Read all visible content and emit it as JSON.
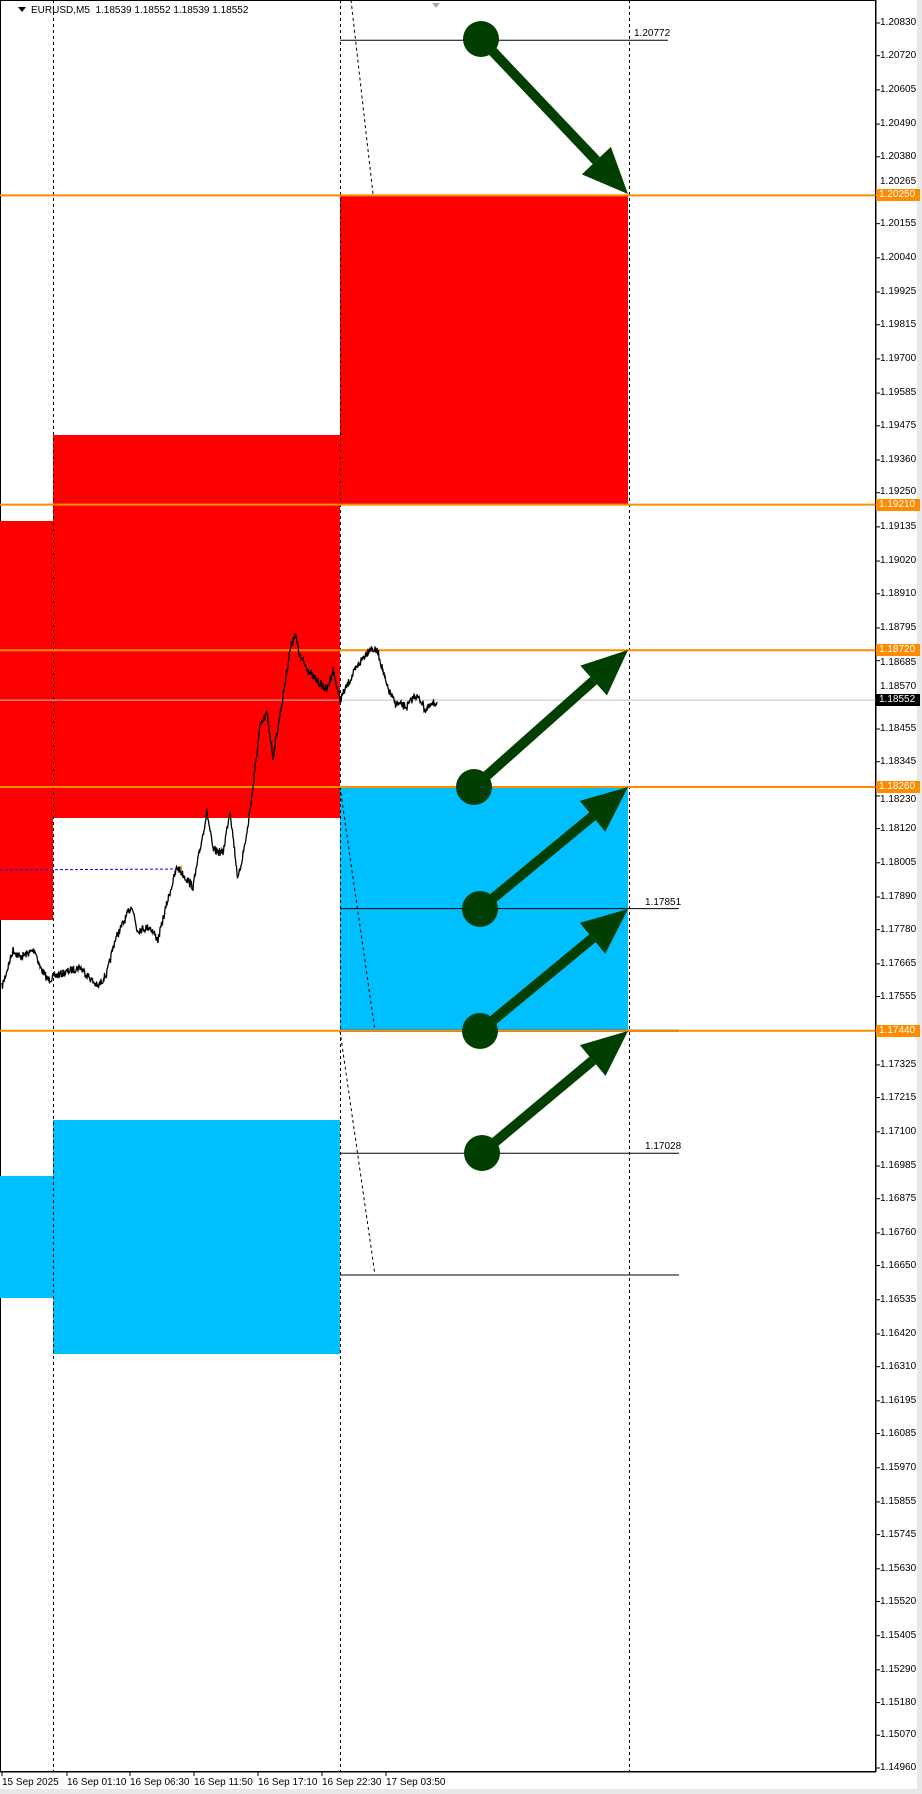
{
  "header": {
    "symbol_timeframe": "EURUSD,M5",
    "ohlc": "1.18539 1.18552 1.18539 1.18552",
    "menu_icon": "triangle-down-icon"
  },
  "price_axis": {
    "ticks": [
      "1.20830",
      "1.20720",
      "1.20605",
      "1.20490",
      "1.20380",
      "1.20265",
      "1.20155",
      "1.20040",
      "1.19925",
      "1.19815",
      "1.19700",
      "1.19585",
      "1.19475",
      "1.19360",
      "1.19250",
      "1.19135",
      "1.19020",
      "1.18910",
      "1.18795",
      "1.18685",
      "1.18570",
      "1.18455",
      "1.18345",
      "1.18230",
      "1.18120",
      "1.18005",
      "1.17890",
      "1.17780",
      "1.17665",
      "1.17555",
      "1.17325",
      "1.17215",
      "1.17100",
      "1.16985",
      "1.16875",
      "1.16760",
      "1.16650",
      "1.16535",
      "1.16420",
      "1.16310",
      "1.16195",
      "1.16085",
      "1.15970",
      "1.15855",
      "1.15745",
      "1.15630",
      "1.15520",
      "1.15405",
      "1.15290",
      "1.15180",
      "1.15070",
      "1.14960"
    ],
    "current_price": "1.18552",
    "orange_levels": [
      "1.20250",
      "1.19210",
      "1.18720",
      "1.18260",
      "1.17440"
    ]
  },
  "time_axis": {
    "labels": [
      "15 Sep 2025",
      "16 Sep 01:10",
      "16 Sep 06:30",
      "16 Sep 11:50",
      "16 Sep 17:10",
      "16 Sep 22:30",
      "17 Sep 03:50"
    ]
  },
  "annotations": {
    "level_labels": [
      "1.20772",
      "1.17851",
      "1.17028"
    ]
  },
  "colors": {
    "supply_zone": "#ff0000",
    "demand_zone": "#00bfff",
    "level_line": "#ff8c00",
    "arrow": "#003f00",
    "price_line": "#000000",
    "current_price_line": "#c0c0c0"
  }
}
